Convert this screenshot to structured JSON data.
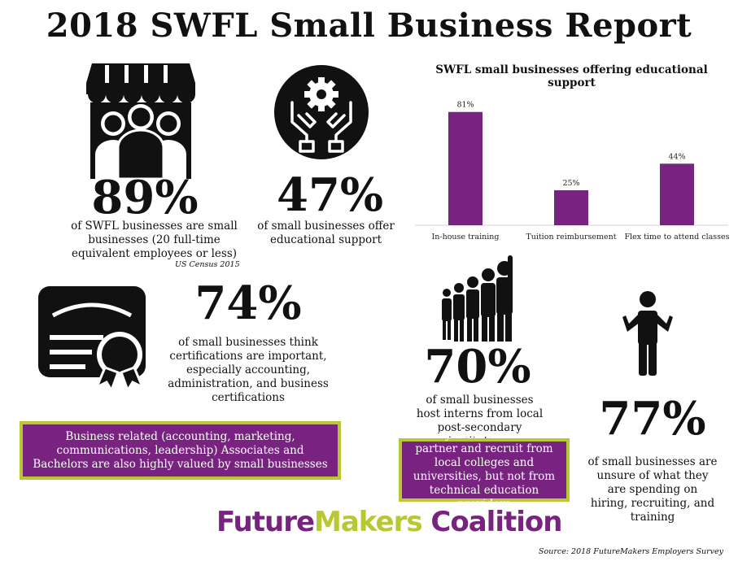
{
  "title": "2018 SWFL Small Business Report",
  "stats": {
    "s89": {
      "value": "89%",
      "text": "of SWFL businesses are small businesses (20 full-time equivalent employees or less)",
      "citation": "US Census 2015"
    },
    "s47": {
      "value": "47%",
      "text": "of small businesses offer educational support"
    },
    "s74": {
      "value": "74%",
      "text": "of small businesses think certifications are important, especially accounting, administration, and business certifications"
    },
    "s70": {
      "value": "70%",
      "text": "of small businesses host interns from local post-secondary institutions"
    },
    "s77": {
      "value": "77%",
      "text": "of small businesses are unsure of what they are spending on hiring, recruiting, and training"
    }
  },
  "callouts": {
    "business_degrees": "Business related (accounting, marketing, communications, leadership) Associates and Bachelors are also highly valued by small businesses",
    "partners": "Many small businesses partner and recruit from local colleges and universities, but not from technical education providers"
  },
  "brand": {
    "part1": "Future",
    "part2": "Makers",
    "part3": " Coalition",
    "purple": "#77237f",
    "green": "#b7c832"
  },
  "source": "Source: 2018 FutureMakers Employers Survey",
  "icons": [
    "storefront-people-icon",
    "gear-hands-icon",
    "certificate-icon",
    "growing-people-icon",
    "shrugging-person-icon"
  ],
  "chart_data": {
    "type": "bar",
    "title": "SWFL small businesses offering educational support",
    "categories": [
      "In-house training",
      "Tuition reimbursement",
      "Flex time to attend classes"
    ],
    "values": [
      81,
      25,
      44
    ],
    "value_labels": [
      "81%",
      "25%",
      "44%"
    ],
    "ylim": [
      0,
      100
    ],
    "color": "#77237f",
    "grid": false,
    "xlabel": "",
    "ylabel": ""
  }
}
